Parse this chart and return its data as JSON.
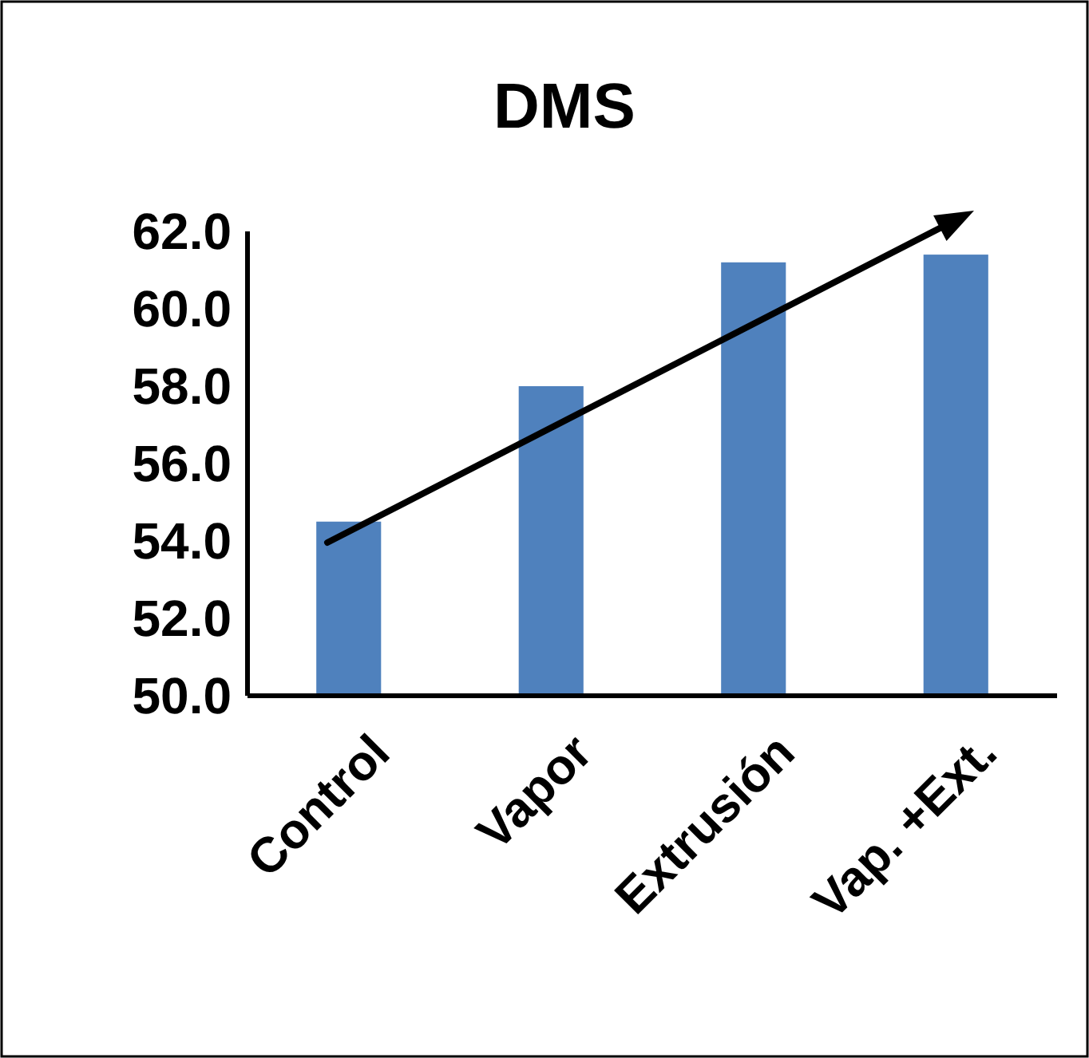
{
  "chart_data": {
    "type": "bar",
    "title": "DMS",
    "categories": [
      "Control",
      "Vapor",
      "Extrusión",
      "Vap. +Ext."
    ],
    "values": [
      54.5,
      58.0,
      61.2,
      61.4
    ],
    "color": "#4f81bd",
    "ylim": [
      50,
      62
    ],
    "yticks": [
      {
        "value": 50,
        "label": "50.0"
      },
      {
        "value": 52,
        "label": "52.0"
      },
      {
        "value": 54,
        "label": "54.0"
      },
      {
        "value": 56,
        "label": "56.0"
      },
      {
        "value": 58,
        "label": "58.0"
      },
      {
        "value": 60,
        "label": "60.0"
      },
      {
        "value": 62,
        "label": "62.0"
      }
    ],
    "grid": false
  }
}
